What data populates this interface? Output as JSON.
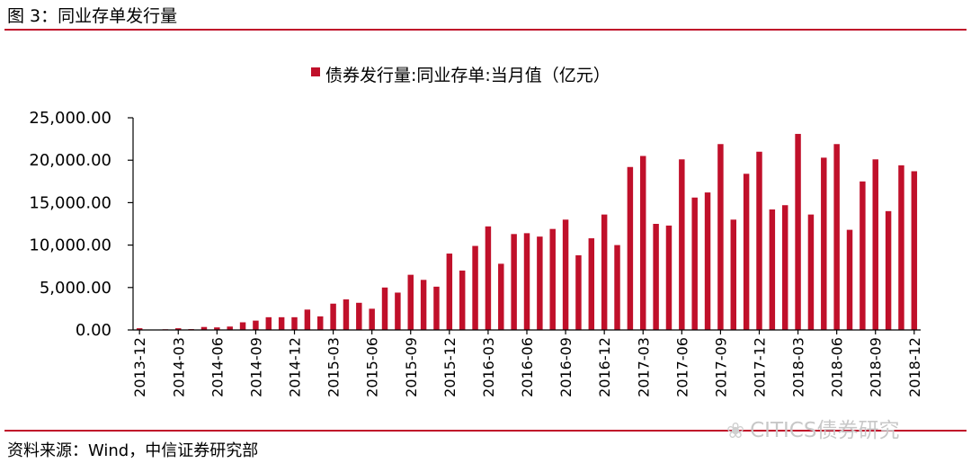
{
  "figure": {
    "title": "图 3：同业存单发行量",
    "source": "资料来源：Wind，中信证券研究部",
    "watermark": "CITICS债券研究"
  },
  "colors": {
    "bar": "#c0102a",
    "rule": "#c0102a",
    "axis": "#000000"
  },
  "chart_data": {
    "type": "bar",
    "title": "",
    "xlabel": "",
    "ylabel": "",
    "legend": "债券发行量:同业存单:当月值（亿元）",
    "legend_position": "top-center",
    "ylim": [
      0,
      25000
    ],
    "yticks": [
      "0.00",
      "5,000.00",
      "10,000.00",
      "15,000.00",
      "20,000.00",
      "25,000.00"
    ],
    "xtick_labels": [
      "2013-12",
      "2014-03",
      "2014-06",
      "2014-09",
      "2014-12",
      "2015-03",
      "2015-06",
      "2015-09",
      "2015-12",
      "2016-03",
      "2016-06",
      "2016-09",
      "2016-12",
      "2017-03",
      "2017-06",
      "2017-09",
      "2017-12",
      "2018-03",
      "2018-06",
      "2018-09",
      "2018-12"
    ],
    "categories": [
      "2013-12",
      "2014-01",
      "2014-02",
      "2014-03",
      "2014-04",
      "2014-05",
      "2014-06",
      "2014-07",
      "2014-08",
      "2014-09",
      "2014-10",
      "2014-11",
      "2014-12",
      "2015-01",
      "2015-02",
      "2015-03",
      "2015-04",
      "2015-05",
      "2015-06",
      "2015-07",
      "2015-08",
      "2015-09",
      "2015-10",
      "2015-11",
      "2015-12",
      "2016-01",
      "2016-02",
      "2016-03",
      "2016-04",
      "2016-05",
      "2016-06",
      "2016-07",
      "2016-08",
      "2016-09",
      "2016-10",
      "2016-11",
      "2016-12",
      "2017-01",
      "2017-02",
      "2017-03",
      "2017-04",
      "2017-05",
      "2017-06",
      "2017-07",
      "2017-08",
      "2017-09",
      "2017-10",
      "2017-11",
      "2017-12",
      "2018-01",
      "2018-02",
      "2018-03",
      "2018-04",
      "2018-05",
      "2018-06",
      "2018-07",
      "2018-08",
      "2018-09",
      "2018-10",
      "2018-11",
      "2018-12"
    ],
    "values": [
      200,
      50,
      80,
      200,
      100,
      350,
      300,
      400,
      900,
      1100,
      1500,
      1500,
      1500,
      2400,
      1600,
      3100,
      3600,
      3200,
      2500,
      5000,
      4400,
      6500,
      5900,
      5100,
      9000,
      7000,
      9900,
      12200,
      7800,
      11300,
      11400,
      11000,
      11900,
      13000,
      8800,
      10800,
      13600,
      10000,
      19200,
      20500,
      12500,
      12300,
      20100,
      15600,
      16200,
      21900,
      13000,
      18400,
      21000,
      14200,
      14700,
      23100,
      13600,
      20300,
      21900,
      11800,
      17500,
      20100,
      14000,
      19400,
      18700
    ]
  }
}
